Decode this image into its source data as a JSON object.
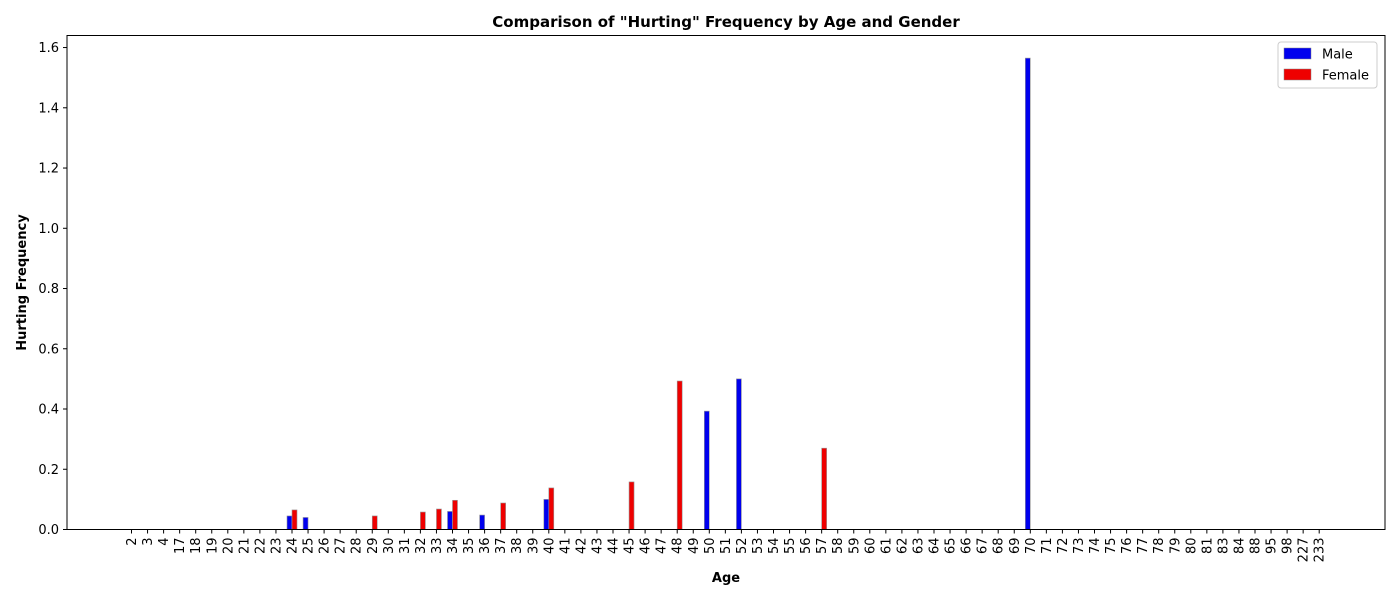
{
  "chart_data": {
    "type": "bar",
    "title": "Comparison of \"Hurting\" Frequency by Age and Gender",
    "xlabel": "Age",
    "ylabel": "Hurting Frequency",
    "ylim": [
      0,
      1.64
    ],
    "yticks": [
      "0.0",
      "0.2",
      "0.4",
      "0.6",
      "0.8",
      "1.0",
      "1.2",
      "1.4",
      "1.6"
    ],
    "legend_position": "top-right",
    "grid": false,
    "categories": [
      "2",
      "3",
      "4",
      "17",
      "18",
      "19",
      "20",
      "21",
      "22",
      "23",
      "24",
      "25",
      "26",
      "27",
      "28",
      "29",
      "30",
      "31",
      "32",
      "33",
      "34",
      "35",
      "36",
      "37",
      "38",
      "39",
      "40",
      "41",
      "42",
      "43",
      "44",
      "45",
      "46",
      "47",
      "48",
      "49",
      "50",
      "51",
      "52",
      "53",
      "54",
      "55",
      "56",
      "57",
      "58",
      "59",
      "60",
      "61",
      "62",
      "63",
      "64",
      "65",
      "66",
      "67",
      "68",
      "69",
      "70",
      "71",
      "72",
      "73",
      "74",
      "75",
      "76",
      "77",
      "78",
      "79",
      "80",
      "81",
      "83",
      "84",
      "88",
      "95",
      "98",
      "227",
      "233"
    ],
    "series": [
      {
        "name": "Male",
        "color": "#0000ee",
        "values": [
          0,
          0,
          0,
          0,
          0,
          0,
          0,
          0,
          0,
          0,
          0.045,
          0.04,
          0,
          0,
          0,
          0,
          0,
          0,
          0,
          0,
          0.06,
          0,
          0.048,
          0,
          0,
          0,
          0.1,
          0,
          0,
          0,
          0,
          0,
          0,
          0,
          0,
          0,
          0.393,
          0,
          0.5,
          0,
          0,
          0,
          0,
          0,
          0,
          0,
          0,
          0,
          0,
          0,
          0,
          0,
          0,
          0,
          0,
          0,
          1.565,
          0,
          0,
          0,
          0,
          0,
          0,
          0,
          0,
          0,
          0,
          0,
          0,
          0,
          0,
          0,
          0,
          0,
          0
        ]
      },
      {
        "name": "Female",
        "color": "#ee0000",
        "values": [
          0,
          0,
          0,
          0,
          0,
          0,
          0,
          0,
          0,
          0,
          0.065,
          0,
          0,
          0,
          0,
          0.045,
          0,
          0,
          0.058,
          0.068,
          0.097,
          0,
          0,
          0.088,
          0,
          0,
          0.138,
          0,
          0,
          0,
          0,
          0.158,
          0,
          0,
          0.493,
          0,
          0,
          0,
          0,
          0,
          0,
          0,
          0,
          0.27,
          0,
          0,
          0,
          0,
          0,
          0,
          0,
          0,
          0,
          0,
          0,
          0,
          0,
          0,
          0,
          0,
          0,
          0,
          0,
          0,
          0,
          0,
          0,
          0,
          0,
          0,
          0,
          0,
          0,
          0,
          0
        ]
      }
    ]
  }
}
